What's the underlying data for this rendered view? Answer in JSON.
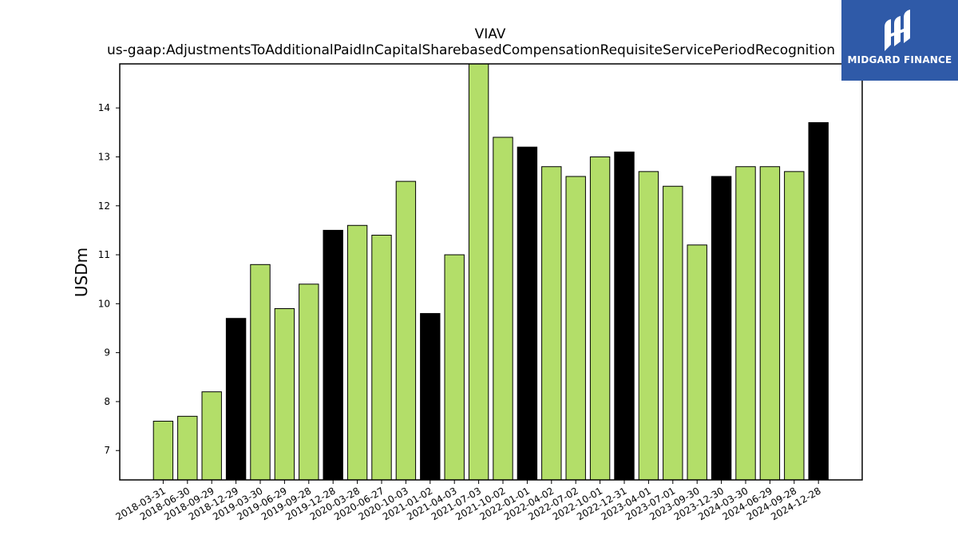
{
  "chart_data": {
    "type": "bar",
    "title": "VIAV",
    "subtitle": "us-gaap:AdjustmentsToAdditionalPaidInCapitalSharebasedCompensationRequisiteServicePeriodRecognition",
    "ylabel": "USDm",
    "xlabel": "",
    "ylim": [
      6.4,
      14.9
    ],
    "yticks": [
      7,
      8,
      9,
      10,
      11,
      12,
      13,
      14
    ],
    "categories": [
      "2018-03-31",
      "2018-06-30",
      "2018-09-29",
      "2018-12-29",
      "2019-03-30",
      "2019-06-29",
      "2019-09-28",
      "2019-12-28",
      "2020-03-28",
      "2020-06-27",
      "2020-10-03",
      "2021-01-02",
      "2021-04-03",
      "2021-07-03",
      "2021-10-02",
      "2022-01-01",
      "2022-04-02",
      "2022-07-02",
      "2022-10-01",
      "2022-12-31",
      "2023-04-01",
      "2023-07-01",
      "2023-09-30",
      "2023-12-30",
      "2024-03-30",
      "2024-06-29",
      "2024-09-28",
      "2024-12-28"
    ],
    "values": [
      7.6,
      7.7,
      8.2,
      9.7,
      10.8,
      9.9,
      10.4,
      11.5,
      11.6,
      11.4,
      12.5,
      9.8,
      11.0,
      14.9,
      13.4,
      13.2,
      12.8,
      12.6,
      13.0,
      13.1,
      12.7,
      12.4,
      11.2,
      12.6,
      12.8,
      12.8,
      12.7,
      13.7
    ],
    "highlighted": [
      false,
      false,
      false,
      true,
      false,
      false,
      false,
      true,
      false,
      false,
      false,
      true,
      false,
      false,
      false,
      true,
      false,
      false,
      false,
      true,
      false,
      false,
      false,
      true,
      false,
      false,
      false,
      true
    ],
    "colors": {
      "normal": "#b3de69",
      "highlight": "#000000",
      "edge": "#000000"
    },
    "grid": false
  },
  "logo": {
    "text": "MIDGARD FINANCE",
    "icon": "midgard-logo-icon"
  }
}
